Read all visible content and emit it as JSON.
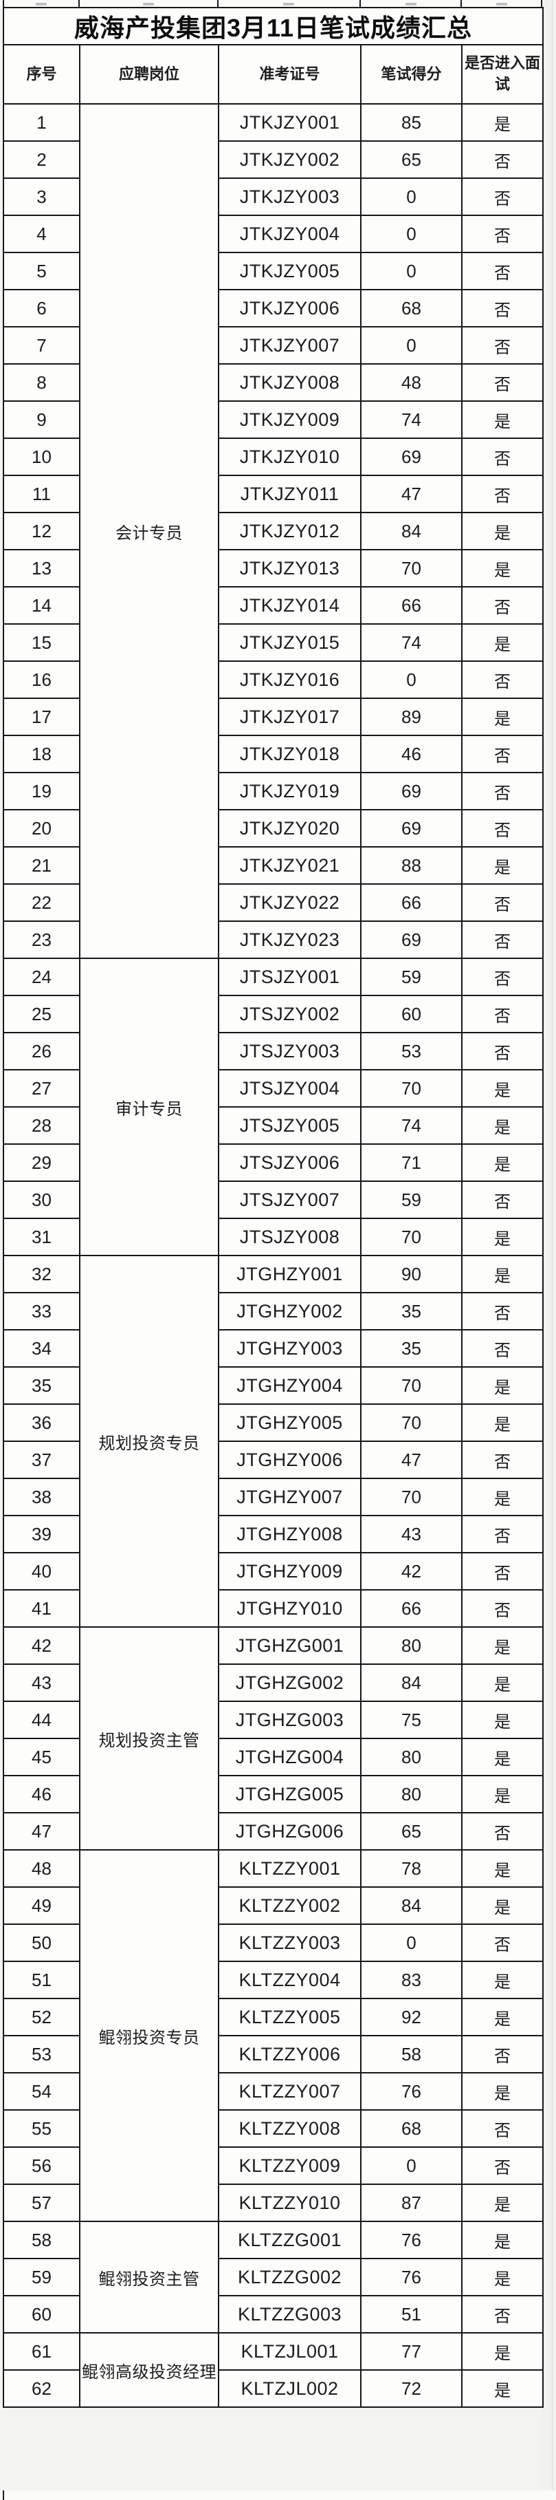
{
  "title": "威海产投集团3月11日笔试成绩汇总",
  "columns": {
    "seq": "序号",
    "position": "应聘岗位",
    "ticket": "准考证号",
    "score": "笔试得分",
    "interview": "是否进入面试"
  },
  "interview_labels": {
    "yes": "是",
    "no": "否"
  },
  "colors": {
    "border": "#171717",
    "cell_bg": "#fdfdfc",
    "page_bg": "#f3f3f2",
    "text": "#1c1c1c"
  },
  "groups": [
    {
      "position": "会计专员",
      "rows": [
        {
          "seq": "1",
          "ticket": "JTKJZY001",
          "score": "85",
          "interview": "是"
        },
        {
          "seq": "2",
          "ticket": "JTKJZY002",
          "score": "65",
          "interview": "否"
        },
        {
          "seq": "3",
          "ticket": "JTKJZY003",
          "score": "0",
          "interview": "否"
        },
        {
          "seq": "4",
          "ticket": "JTKJZY004",
          "score": "0",
          "interview": "否"
        },
        {
          "seq": "5",
          "ticket": "JTKJZY005",
          "score": "0",
          "interview": "否"
        },
        {
          "seq": "6",
          "ticket": "JTKJZY006",
          "score": "68",
          "interview": "否"
        },
        {
          "seq": "7",
          "ticket": "JTKJZY007",
          "score": "0",
          "interview": "否"
        },
        {
          "seq": "8",
          "ticket": "JTKJZY008",
          "score": "48",
          "interview": "否"
        },
        {
          "seq": "9",
          "ticket": "JTKJZY009",
          "score": "74",
          "interview": "是"
        },
        {
          "seq": "10",
          "ticket": "JTKJZY010",
          "score": "69",
          "interview": "否"
        },
        {
          "seq": "11",
          "ticket": "JTKJZY011",
          "score": "47",
          "interview": "否"
        },
        {
          "seq": "12",
          "ticket": "JTKJZY012",
          "score": "84",
          "interview": "是"
        },
        {
          "seq": "13",
          "ticket": "JTKJZY013",
          "score": "70",
          "interview": "是"
        },
        {
          "seq": "14",
          "ticket": "JTKJZY014",
          "score": "66",
          "interview": "否"
        },
        {
          "seq": "15",
          "ticket": "JTKJZY015",
          "score": "74",
          "interview": "是"
        },
        {
          "seq": "16",
          "ticket": "JTKJZY016",
          "score": "0",
          "interview": "否"
        },
        {
          "seq": "17",
          "ticket": "JTKJZY017",
          "score": "89",
          "interview": "是"
        },
        {
          "seq": "18",
          "ticket": "JTKJZY018",
          "score": "46",
          "interview": "否"
        },
        {
          "seq": "19",
          "ticket": "JTKJZY019",
          "score": "69",
          "interview": "否"
        },
        {
          "seq": "20",
          "ticket": "JTKJZY020",
          "score": "69",
          "interview": "否"
        },
        {
          "seq": "21",
          "ticket": "JTKJZY021",
          "score": "88",
          "interview": "是"
        },
        {
          "seq": "22",
          "ticket": "JTKJZY022",
          "score": "66",
          "interview": "否"
        },
        {
          "seq": "23",
          "ticket": "JTKJZY023",
          "score": "69",
          "interview": "否"
        }
      ]
    },
    {
      "position": "审计专员",
      "rows": [
        {
          "seq": "24",
          "ticket": "JTSJZY001",
          "score": "59",
          "interview": "否"
        },
        {
          "seq": "25",
          "ticket": "JTSJZY002",
          "score": "60",
          "interview": "否"
        },
        {
          "seq": "26",
          "ticket": "JTSJZY003",
          "score": "53",
          "interview": "否"
        },
        {
          "seq": "27",
          "ticket": "JTSJZY004",
          "score": "70",
          "interview": "是"
        },
        {
          "seq": "28",
          "ticket": "JTSJZY005",
          "score": "74",
          "interview": "是"
        },
        {
          "seq": "29",
          "ticket": "JTSJZY006",
          "score": "71",
          "interview": "是"
        },
        {
          "seq": "30",
          "ticket": "JTSJZY007",
          "score": "59",
          "interview": "否"
        },
        {
          "seq": "31",
          "ticket": "JTSJZY008",
          "score": "70",
          "interview": "是"
        }
      ]
    },
    {
      "position": "规划投资专员",
      "rows": [
        {
          "seq": "32",
          "ticket": "JTGHZY001",
          "score": "90",
          "interview": "是"
        },
        {
          "seq": "33",
          "ticket": "JTGHZY002",
          "score": "35",
          "interview": "否"
        },
        {
          "seq": "34",
          "ticket": "JTGHZY003",
          "score": "35",
          "interview": "否"
        },
        {
          "seq": "35",
          "ticket": "JTGHZY004",
          "score": "70",
          "interview": "是"
        },
        {
          "seq": "36",
          "ticket": "JTGHZY005",
          "score": "70",
          "interview": "是"
        },
        {
          "seq": "37",
          "ticket": "JTGHZY006",
          "score": "47",
          "interview": "否"
        },
        {
          "seq": "38",
          "ticket": "JTGHZY007",
          "score": "70",
          "interview": "是"
        },
        {
          "seq": "39",
          "ticket": "JTGHZY008",
          "score": "43",
          "interview": "否"
        },
        {
          "seq": "40",
          "ticket": "JTGHZY009",
          "score": "42",
          "interview": "否"
        },
        {
          "seq": "41",
          "ticket": "JTGHZY010",
          "score": "66",
          "interview": "否"
        }
      ]
    },
    {
      "position": "规划投资主管",
      "rows": [
        {
          "seq": "42",
          "ticket": "JTGHZG001",
          "score": "80",
          "interview": "是"
        },
        {
          "seq": "43",
          "ticket": "JTGHZG002",
          "score": "84",
          "interview": "是"
        },
        {
          "seq": "44",
          "ticket": "JTGHZG003",
          "score": "75",
          "interview": "是"
        },
        {
          "seq": "45",
          "ticket": "JTGHZG004",
          "score": "80",
          "interview": "是"
        },
        {
          "seq": "46",
          "ticket": "JTGHZG005",
          "score": "80",
          "interview": "是"
        },
        {
          "seq": "47",
          "ticket": "JTGHZG006",
          "score": "65",
          "interview": "否"
        }
      ]
    },
    {
      "position": "鲲翎投资专员",
      "rows": [
        {
          "seq": "48",
          "ticket": "KLTZZY001",
          "score": "78",
          "interview": "是"
        },
        {
          "seq": "49",
          "ticket": "KLTZZY002",
          "score": "84",
          "interview": "是"
        },
        {
          "seq": "50",
          "ticket": "KLTZZY003",
          "score": "0",
          "interview": "否"
        },
        {
          "seq": "51",
          "ticket": "KLTZZY004",
          "score": "83",
          "interview": "是"
        },
        {
          "seq": "52",
          "ticket": "KLTZZY005",
          "score": "92",
          "interview": "是"
        },
        {
          "seq": "53",
          "ticket": "KLTZZY006",
          "score": "58",
          "interview": "否"
        },
        {
          "seq": "54",
          "ticket": "KLTZZY007",
          "score": "76",
          "interview": "是"
        },
        {
          "seq": "55",
          "ticket": "KLTZZY008",
          "score": "68",
          "interview": "否"
        },
        {
          "seq": "56",
          "ticket": "KLTZZY009",
          "score": "0",
          "interview": "否"
        },
        {
          "seq": "57",
          "ticket": "KLTZZY010",
          "score": "87",
          "interview": "是"
        }
      ]
    },
    {
      "position": "鲲翎投资主管",
      "rows": [
        {
          "seq": "58",
          "ticket": "KLTZZG001",
          "score": "76",
          "interview": "是"
        },
        {
          "seq": "59",
          "ticket": "KLTZZG002",
          "score": "76",
          "interview": "是"
        },
        {
          "seq": "60",
          "ticket": "KLTZZG003",
          "score": "51",
          "interview": "否"
        }
      ]
    },
    {
      "position": "鲲翎高级投资经理",
      "rows": [
        {
          "seq": "61",
          "ticket": "KLTZJL001",
          "score": "77",
          "interview": "是"
        },
        {
          "seq": "62",
          "ticket": "KLTZJL002",
          "score": "72",
          "interview": "是"
        }
      ]
    }
  ]
}
